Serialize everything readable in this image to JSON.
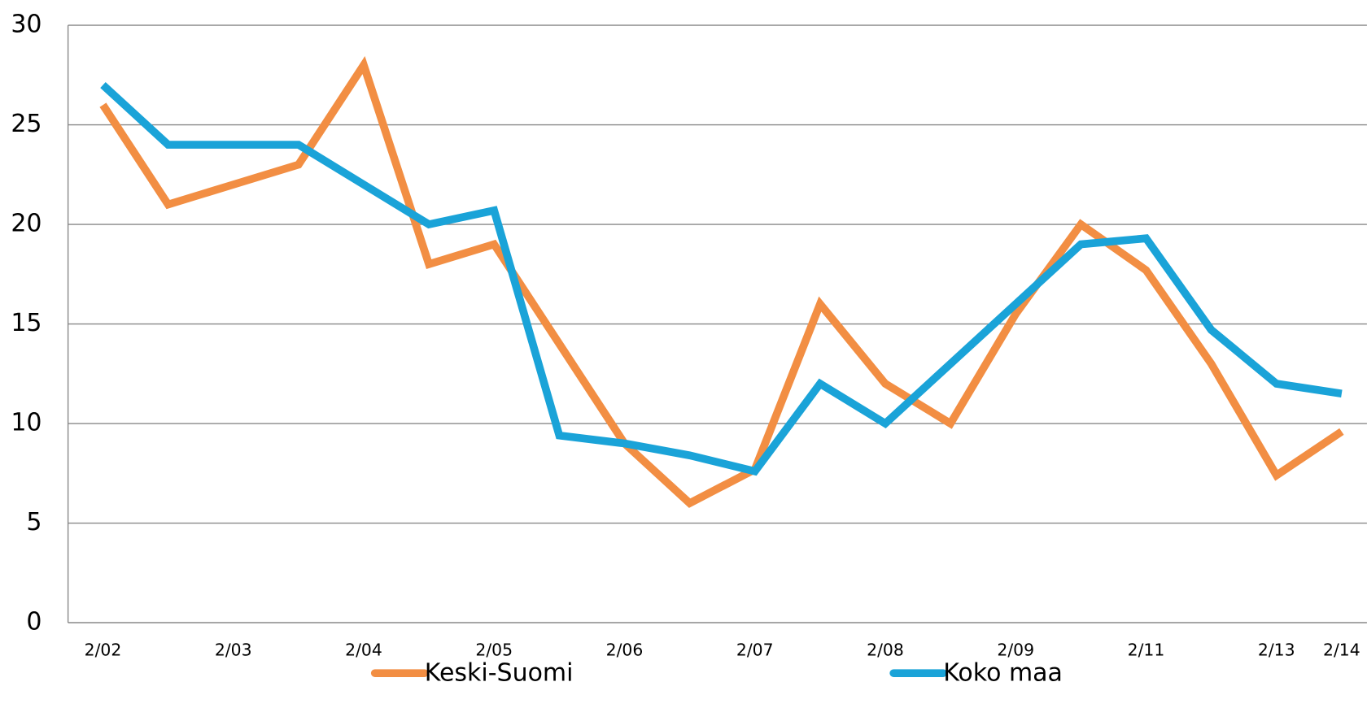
{
  "chart_data": {
    "type": "line",
    "categories": [
      "2/02",
      null,
      "2/03",
      null,
      "2/04",
      null,
      "2/05",
      null,
      "2/06",
      null,
      "2/07",
      null,
      "2/08",
      null,
      "2/09",
      null,
      "2/11",
      null,
      "2/13",
      "2/14"
    ],
    "series": [
      {
        "name": "Keski-Suomi",
        "color": "#f28e43",
        "values": [
          26,
          21,
          22,
          23,
          28,
          18,
          19,
          14,
          9,
          6,
          7.7,
          16,
          12,
          10,
          15.5,
          20,
          17.7,
          13,
          7.4,
          9.6
        ]
      },
      {
        "name": "Koko maa",
        "color": "#1aa3d8",
        "values": [
          27,
          24,
          24,
          24,
          22,
          20,
          20.7,
          9.4,
          9,
          8.4,
          7.6,
          12,
          10,
          13,
          16,
          19,
          19.3,
          14.7,
          12,
          11.5
        ]
      }
    ],
    "ylim": [
      0,
      30
    ],
    "yticks": [
      0,
      5,
      10,
      15,
      20,
      25,
      30
    ],
    "grid": true,
    "legend": "bottom"
  }
}
